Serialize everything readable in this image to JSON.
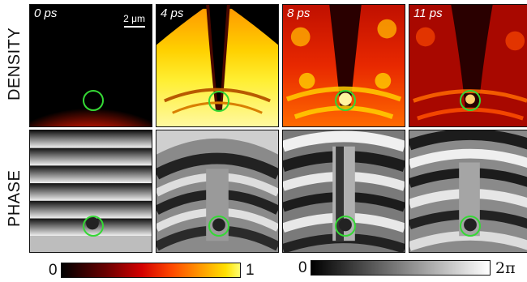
{
  "row_labels": {
    "density": "DENSITY",
    "phase": "PHASE"
  },
  "time_labels": [
    "0 ps",
    "4 ps",
    "8 ps",
    "11 ps"
  ],
  "scale_bar": {
    "label": "2 μm"
  },
  "colorbars": {
    "density": {
      "min_label": "0",
      "max_label": "1",
      "colormap": "hot"
    },
    "phase": {
      "min_label": "0",
      "max_label": "2π",
      "colormap": "gray"
    }
  },
  "colors": {
    "marker": "#35d835",
    "frame": "#111111"
  }
}
